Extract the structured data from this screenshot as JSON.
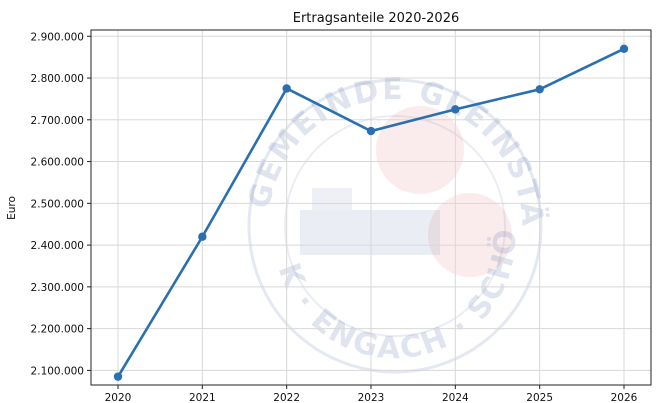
{
  "chart_data": {
    "type": "line",
    "title": "Ertragsanteile 2020-2026",
    "xlabel": "",
    "ylabel": "Euro",
    "x": [
      "2020",
      "2021",
      "2022",
      "2023",
      "2024",
      "2025",
      "2026"
    ],
    "series": [
      {
        "values": [
          2085000,
          2420000,
          2775000,
          2673000,
          2725000,
          2773000,
          2870000
        ],
        "color": "#2a70b0"
      }
    ],
    "ylim": [
      2065000,
      2915000
    ],
    "y_ticks": [
      2100000,
      2200000,
      2300000,
      2400000,
      2500000,
      2600000,
      2700000,
      2800000,
      2900000
    ],
    "y_tick_labels": [
      "2.100.000",
      "2.200.000",
      "2.300.000",
      "2.400.000",
      "2.500.000",
      "2.600.000",
      "2.700.000",
      "2.800.000",
      "2.900.000"
    ],
    "grid": true,
    "legend": "none"
  },
  "watermark": {
    "text_top": "GEMEINDE GLEINSTÄTTEN",
    "text_bottom": "K · ENGACH · SCHÖN",
    "colors": {
      "blue": "#5a6fa8",
      "red": "#d24848"
    }
  }
}
